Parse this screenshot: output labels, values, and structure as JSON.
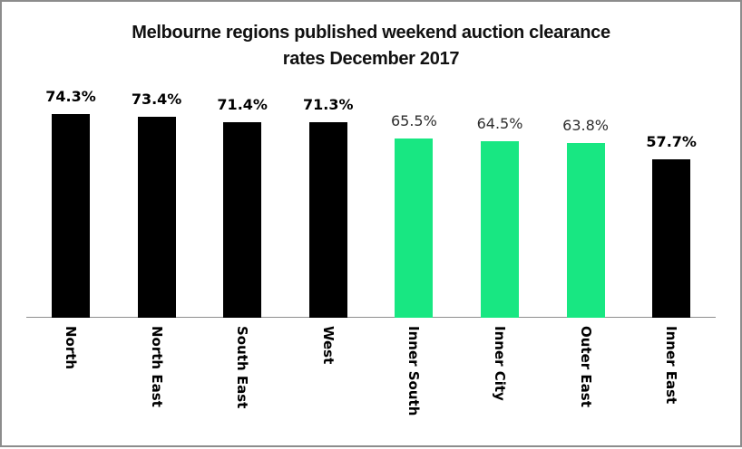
{
  "frame": {
    "background": "#ffffff",
    "border_color": "#8c8c8c"
  },
  "chart_data": {
    "type": "bar",
    "title": "Melbourne regions published weekend auction clearance rates December 2017",
    "title_lines": [
      "Melbourne regions published weekend auction clearance",
      "rates December 2017"
    ],
    "xlabel": "",
    "ylabel": "",
    "ylim": [
      0,
      85
    ],
    "grid": false,
    "legend": false,
    "value_suffix": "%",
    "category_label_rotation_deg": 90,
    "axis_line_color": "#8f8f8f",
    "colors": {
      "black_bar": "#000000",
      "green_bar": "#18E782"
    },
    "categories": [
      "North",
      "North East",
      "South East",
      "West",
      "Inner South",
      "Inner City",
      "Outer East",
      "Inner East"
    ],
    "values": [
      74.3,
      73.4,
      71.4,
      71.3,
      65.5,
      64.5,
      63.8,
      57.7
    ],
    "bars": [
      {
        "category": "North",
        "value": 74.3,
        "label": "74.3%",
        "color": "#000000",
        "label_bold": true
      },
      {
        "category": "North East",
        "value": 73.4,
        "label": "73.4%",
        "color": "#000000",
        "label_bold": true
      },
      {
        "category": "South East",
        "value": 71.4,
        "label": "71.4%",
        "color": "#000000",
        "label_bold": true
      },
      {
        "category": "West",
        "value": 71.3,
        "label": "71.3%",
        "color": "#000000",
        "label_bold": true
      },
      {
        "category": "Inner South",
        "value": 65.5,
        "label": "65.5%",
        "color": "#18E782",
        "label_bold": false
      },
      {
        "category": "Inner City",
        "value": 64.5,
        "label": "64.5%",
        "color": "#18E782",
        "label_bold": false
      },
      {
        "category": "Outer East",
        "value": 63.8,
        "label": "63.8%",
        "color": "#18E782",
        "label_bold": false
      },
      {
        "category": "Inner East",
        "value": 57.7,
        "label": "57.7%",
        "color": "#000000",
        "label_bold": true
      }
    ]
  }
}
